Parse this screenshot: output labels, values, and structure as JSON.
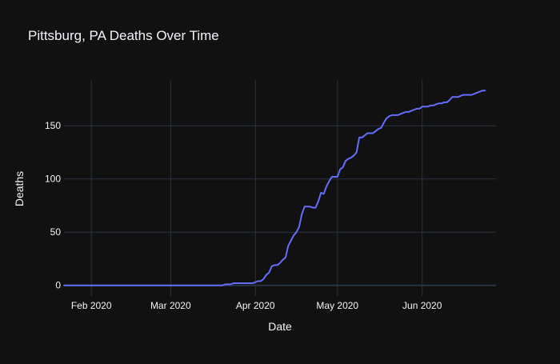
{
  "chart_data": {
    "type": "line",
    "title": "Pittsburg, PA Deaths Over Time",
    "xlabel": "Date",
    "ylabel": "Deaths",
    "x_ticks": [
      {
        "date": "2020-02-01",
        "label": "Feb 2020"
      },
      {
        "date": "2020-03-01",
        "label": "Mar 2020"
      },
      {
        "date": "2020-04-01",
        "label": "Apr 2020"
      },
      {
        "date": "2020-05-01",
        "label": "May 2020"
      },
      {
        "date": "2020-06-01",
        "label": "Jun 2020"
      }
    ],
    "y_ticks": [
      0,
      50,
      100,
      150
    ],
    "xlim": [
      "2020-01-22",
      "2020-06-28"
    ],
    "ylim": [
      -10,
      193
    ],
    "grid": true,
    "colors": {
      "background": "#111111",
      "grid": "#283442",
      "line": "#636efa",
      "text": "#f2f5fa"
    },
    "series": [
      {
        "points": [
          [
            "2020-01-22",
            0
          ],
          [
            "2020-03-20",
            0
          ],
          [
            "2020-03-21",
            1
          ],
          [
            "2020-03-23",
            1
          ],
          [
            "2020-03-24",
            2
          ],
          [
            "2020-03-31",
            2
          ],
          [
            "2020-04-01",
            3
          ],
          [
            "2020-04-02",
            4
          ],
          [
            "2020-04-03",
            4
          ],
          [
            "2020-04-04",
            6
          ],
          [
            "2020-04-05",
            10
          ],
          [
            "2020-04-06",
            12
          ],
          [
            "2020-04-07",
            18
          ],
          [
            "2020-04-08",
            19
          ],
          [
            "2020-04-09",
            19
          ],
          [
            "2020-04-10",
            21
          ],
          [
            "2020-04-11",
            24
          ],
          [
            "2020-04-12",
            26
          ],
          [
            "2020-04-13",
            37
          ],
          [
            "2020-04-14",
            42
          ],
          [
            "2020-04-15",
            47
          ],
          [
            "2020-04-16",
            50
          ],
          [
            "2020-04-17",
            55
          ],
          [
            "2020-04-18",
            67
          ],
          [
            "2020-04-19",
            74
          ],
          [
            "2020-04-20",
            74
          ],
          [
            "2020-04-21",
            74
          ],
          [
            "2020-04-22",
            73
          ],
          [
            "2020-04-23",
            73
          ],
          [
            "2020-04-24",
            79
          ],
          [
            "2020-04-25",
            87
          ],
          [
            "2020-04-26",
            86
          ],
          [
            "2020-04-27",
            93
          ],
          [
            "2020-04-28",
            98
          ],
          [
            "2020-04-29",
            102
          ],
          [
            "2020-04-30",
            102
          ],
          [
            "2020-05-01",
            102
          ],
          [
            "2020-05-02",
            109
          ],
          [
            "2020-05-03",
            111
          ],
          [
            "2020-05-04",
            117
          ],
          [
            "2020-05-05",
            119
          ],
          [
            "2020-05-06",
            120
          ],
          [
            "2020-05-07",
            122
          ],
          [
            "2020-05-08",
            125
          ],
          [
            "2020-05-09",
            139
          ],
          [
            "2020-05-10",
            139
          ],
          [
            "2020-05-11",
            141
          ],
          [
            "2020-05-12",
            143
          ],
          [
            "2020-05-13",
            143
          ],
          [
            "2020-05-14",
            143
          ],
          [
            "2020-05-15",
            145
          ],
          [
            "2020-05-16",
            147
          ],
          [
            "2020-05-17",
            148
          ],
          [
            "2020-05-18",
            153
          ],
          [
            "2020-05-19",
            157
          ],
          [
            "2020-05-20",
            159
          ],
          [
            "2020-05-21",
            160
          ],
          [
            "2020-05-22",
            160
          ],
          [
            "2020-05-23",
            160
          ],
          [
            "2020-05-24",
            161
          ],
          [
            "2020-05-25",
            162
          ],
          [
            "2020-05-26",
            163
          ],
          [
            "2020-05-27",
            163
          ],
          [
            "2020-05-28",
            164
          ],
          [
            "2020-05-29",
            165
          ],
          [
            "2020-05-30",
            166
          ],
          [
            "2020-05-31",
            166
          ],
          [
            "2020-06-01",
            168
          ],
          [
            "2020-06-02",
            168
          ],
          [
            "2020-06-03",
            168
          ],
          [
            "2020-06-04",
            169
          ],
          [
            "2020-06-05",
            169
          ],
          [
            "2020-06-06",
            170
          ],
          [
            "2020-06-07",
            171
          ],
          [
            "2020-06-08",
            171
          ],
          [
            "2020-06-09",
            172
          ],
          [
            "2020-06-10",
            172
          ],
          [
            "2020-06-11",
            174
          ],
          [
            "2020-06-12",
            177
          ],
          [
            "2020-06-13",
            177
          ],
          [
            "2020-06-14",
            177
          ],
          [
            "2020-06-15",
            178
          ],
          [
            "2020-06-16",
            179
          ],
          [
            "2020-06-17",
            179
          ],
          [
            "2020-06-18",
            179
          ],
          [
            "2020-06-19",
            179
          ],
          [
            "2020-06-20",
            180
          ],
          [
            "2020-06-21",
            181
          ],
          [
            "2020-06-22",
            182
          ],
          [
            "2020-06-23",
            183
          ],
          [
            "2020-06-24",
            183
          ]
        ]
      }
    ]
  }
}
